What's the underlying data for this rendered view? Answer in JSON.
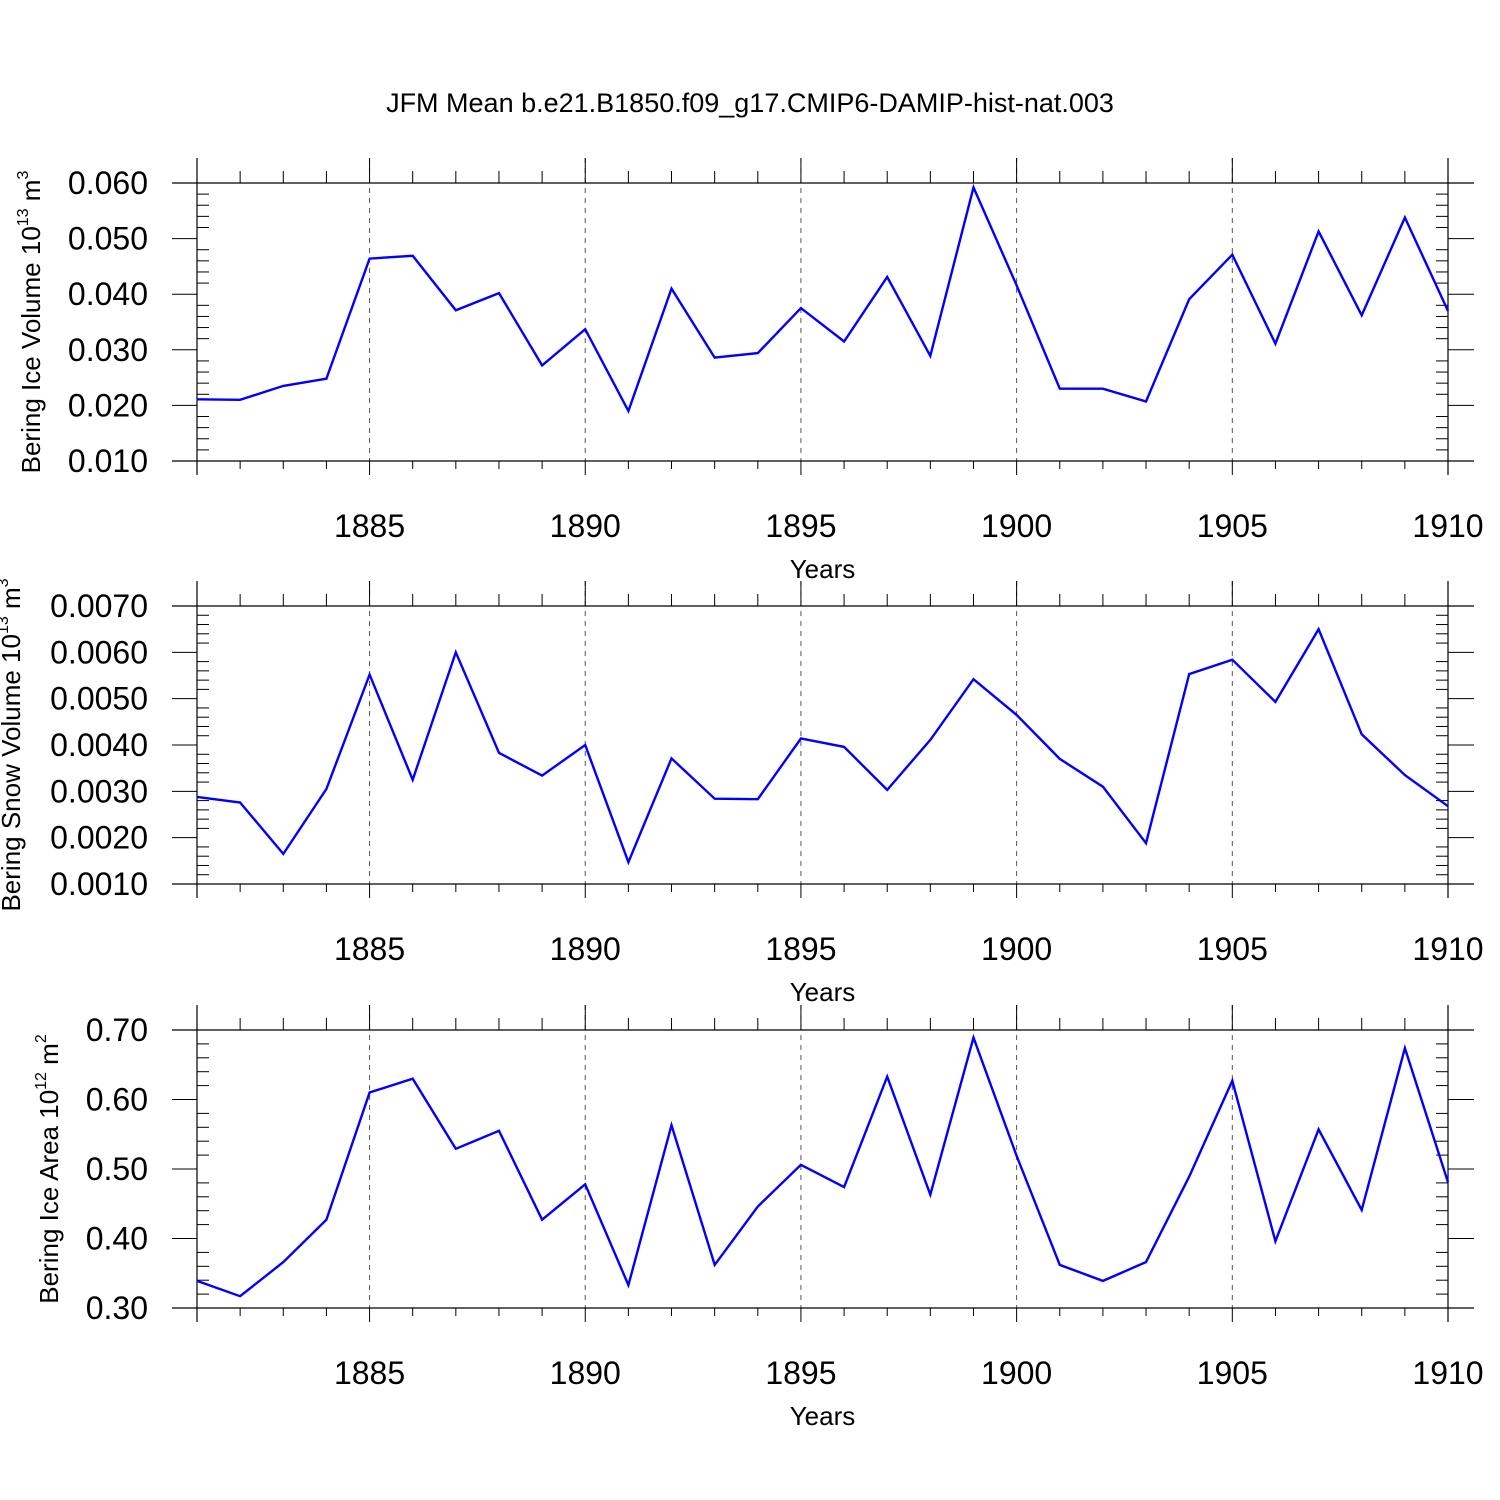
{
  "title": "JFM Mean b.e21.B1850.f09_g17.CMIP6-DAMIP-hist-nat.003",
  "colors": {
    "line": "#0000ff",
    "axis": "#000000",
    "grid": "#555555"
  },
  "chart_data": [
    {
      "type": "line",
      "ylabel": {
        "text": "Bering Ice Volume 10",
        "sup": "13",
        "unit": " m",
        "unit_sup": "3"
      },
      "xlabel": "Years",
      "xlim": [
        1881,
        1910
      ],
      "ylim": [
        0.01,
        0.06
      ],
      "yticks": [
        "0.010",
        "0.020",
        "0.030",
        "0.040",
        "0.050",
        "0.060"
      ],
      "xticks": [
        "1885",
        "1890",
        "1895",
        "1900",
        "1905",
        "1910"
      ],
      "series": [
        {
          "name": "Bering Ice Volume",
          "x": [
            1881,
            1882,
            1883,
            1884,
            1885,
            1886,
            1887,
            1888,
            1889,
            1890,
            1891,
            1892,
            1893,
            1894,
            1895,
            1896,
            1897,
            1898,
            1899,
            1900,
            1901,
            1902,
            1903,
            1904,
            1905,
            1906,
            1907,
            1908,
            1909,
            1910
          ],
          "values": [
            0.0211,
            0.021,
            0.0235,
            0.0248,
            0.0464,
            0.0469,
            0.0371,
            0.0402,
            0.0272,
            0.0337,
            0.019,
            0.041,
            0.0286,
            0.0294,
            0.0375,
            0.0315,
            0.0431,
            0.0289,
            0.0592,
            0.0416,
            0.023,
            0.023,
            0.0207,
            0.0391,
            0.0471,
            0.0311,
            0.0513,
            0.0362,
            0.0538,
            0.037
          ]
        }
      ]
    },
    {
      "type": "line",
      "ylabel": {
        "text": "Bering Snow Volume 10",
        "sup": "13",
        "unit": " m",
        "unit_sup": "3"
      },
      "xlabel": "Years",
      "xlim": [
        1881,
        1910
      ],
      "ylim": [
        0.001,
        0.007
      ],
      "yticks": [
        "0.0010",
        "0.0020",
        "0.0030",
        "0.0040",
        "0.0050",
        "0.0060",
        "0.0070"
      ],
      "xticks": [
        "1885",
        "1890",
        "1895",
        "1900",
        "1905",
        "1910"
      ],
      "series": [
        {
          "name": "Bering Snow Volume",
          "x": [
            1881,
            1882,
            1883,
            1884,
            1885,
            1886,
            1887,
            1888,
            1889,
            1890,
            1891,
            1892,
            1893,
            1894,
            1895,
            1896,
            1897,
            1898,
            1899,
            1900,
            1901,
            1902,
            1903,
            1904,
            1905,
            1906,
            1907,
            1908,
            1909,
            1910
          ],
          "values": [
            0.00288,
            0.00276,
            0.00165,
            0.00305,
            0.00552,
            0.00325,
            0.006,
            0.00383,
            0.00334,
            0.004,
            0.00147,
            0.00371,
            0.00284,
            0.00283,
            0.00414,
            0.00396,
            0.00303,
            0.00411,
            0.00542,
            0.00465,
            0.0037,
            0.0031,
            0.00188,
            0.00553,
            0.00584,
            0.00493,
            0.0065,
            0.00423,
            0.00335,
            0.00268
          ]
        }
      ]
    },
    {
      "type": "line",
      "ylabel": {
        "text": "Bering Ice Area 10",
        "sup": "12",
        "unit": " m",
        "unit_sup": "2"
      },
      "xlabel": "Years",
      "xlim": [
        1881,
        1910
      ],
      "ylim": [
        0.3,
        0.7
      ],
      "yticks": [
        "0.30",
        "0.40",
        "0.50",
        "0.60",
        "0.70"
      ],
      "xticks": [
        "1885",
        "1890",
        "1895",
        "1900",
        "1905",
        "1910"
      ],
      "series": [
        {
          "name": "Bering Ice Area",
          "x": [
            1881,
            1882,
            1883,
            1884,
            1885,
            1886,
            1887,
            1888,
            1889,
            1890,
            1891,
            1892,
            1893,
            1894,
            1895,
            1896,
            1897,
            1898,
            1899,
            1900,
            1901,
            1902,
            1903,
            1904,
            1905,
            1906,
            1907,
            1908,
            1909,
            1910
          ],
          "values": [
            0.339,
            0.317,
            0.366,
            0.427,
            0.61,
            0.63,
            0.529,
            0.555,
            0.427,
            0.478,
            0.333,
            0.563,
            0.362,
            0.446,
            0.506,
            0.474,
            0.633,
            0.463,
            0.689,
            0.519,
            0.362,
            0.339,
            0.366,
            0.489,
            0.627,
            0.396,
            0.557,
            0.441,
            0.674,
            0.481
          ]
        }
      ]
    }
  ]
}
